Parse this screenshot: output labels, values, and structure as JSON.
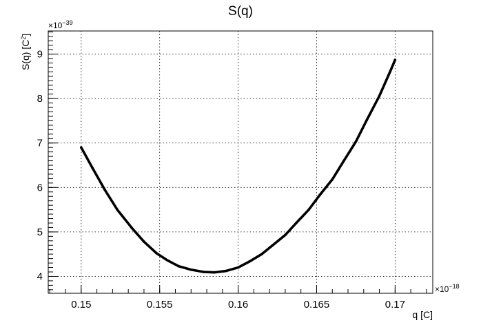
{
  "chart_data": {
    "type": "scatter",
    "title": "S(q)",
    "xlabel": "q [C]",
    "ylabel": "S(q) [C",
    "ylabel_sup": "2",
    "ylabel_close": "]",
    "x_multiplier": "×10",
    "x_multiplier_exp": "−18",
    "y_multiplier": "×10",
    "y_multiplier_exp": "−39",
    "xlim": [
      0.1479,
      0.1724
    ],
    "ylim": [
      3.62,
      9.52
    ],
    "xticks": [
      0.15,
      0.155,
      0.16,
      0.165,
      0.17
    ],
    "xtick_labels": [
      "0.15",
      "0.155",
      "0.16",
      "0.165",
      "0.17"
    ],
    "yticks": [
      4,
      5,
      6,
      7,
      8,
      9
    ],
    "ytick_labels": [
      "4",
      "5",
      "6",
      "7",
      "8",
      "9"
    ],
    "grid": true,
    "series": [
      {
        "color": "#000000",
        "x": [
          0.15,
          0.1507,
          0.1515,
          0.1523,
          0.1532,
          0.154,
          0.1548,
          0.1555,
          0.1562,
          0.157,
          0.1578,
          0.1585,
          0.1592,
          0.16,
          0.1607,
          0.1615,
          0.1622,
          0.163,
          0.1637,
          0.1645,
          0.1652,
          0.166,
          0.1667,
          0.1675,
          0.1682,
          0.169,
          0.1697,
          0.17
        ],
        "y": [
          6.9,
          6.45,
          5.95,
          5.5,
          5.1,
          4.78,
          4.52,
          4.36,
          4.23,
          4.15,
          4.1,
          4.09,
          4.12,
          4.2,
          4.33,
          4.5,
          4.7,
          4.93,
          5.2,
          5.5,
          5.83,
          6.18,
          6.58,
          7.03,
          7.52,
          8.06,
          8.62,
          8.87
        ]
      }
    ]
  }
}
